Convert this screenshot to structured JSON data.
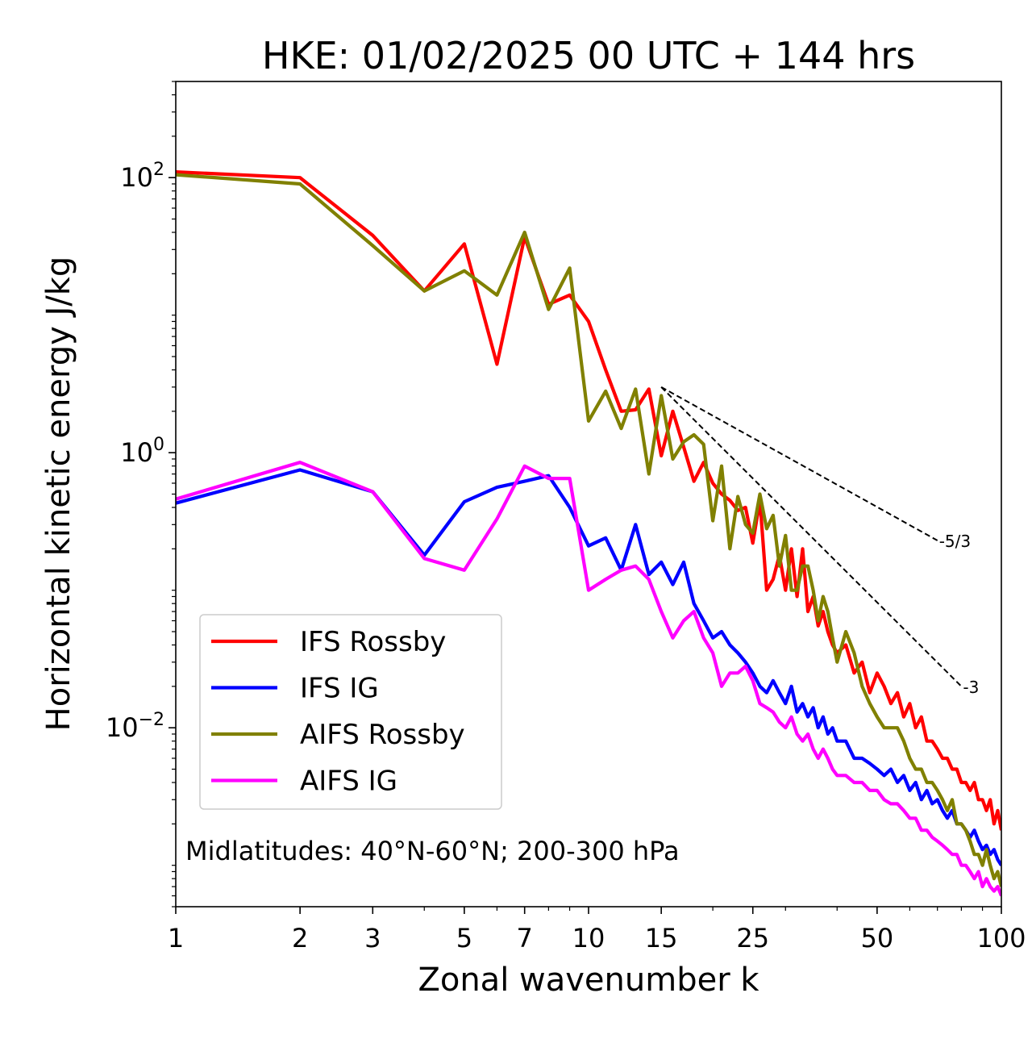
{
  "chart_data": {
    "type": "line",
    "title": "HKE: 01/02/2025 00 UTC + 144 hrs",
    "xlabel": "Zonal wavenumber k",
    "ylabel": "Horizontal kinetic energy J/kg",
    "x_scale": "log",
    "y_scale": "log",
    "xlim": [
      1,
      100
    ],
    "ylim": [
      0.0005,
      500
    ],
    "x_ticks": [
      1,
      2,
      3,
      5,
      7,
      10,
      15,
      25,
      50,
      100
    ],
    "x_tick_labels": [
      "1",
      "2",
      "3",
      "5",
      "7",
      "10",
      "15",
      "25",
      "50",
      "100"
    ],
    "y_ticks": [
      100,
      1,
      0.01
    ],
    "y_tick_labels": [
      {
        "base": "10",
        "exp": "2"
      },
      {
        "base": "10",
        "exp": "0"
      },
      {
        "base": "10",
        "exp": "−2"
      }
    ],
    "grid": false,
    "legend_position": "lower-left",
    "annotation": "Midlatitudes: 40°N-60°N; 200-300 hPa",
    "reference_slopes": [
      {
        "label": "-5/3",
        "slope": -1.6667,
        "x": [
          15,
          70
        ],
        "y": [
          3.0,
          0.23
        ]
      },
      {
        "label": "-3",
        "slope": -3,
        "x": [
          15,
          80
        ],
        "y": [
          3.0,
          0.02
        ]
      }
    ],
    "series": [
      {
        "name": "IFS Rossby",
        "color": "#ff0000",
        "x": [
          1,
          2,
          3,
          4,
          5,
          6,
          7,
          8,
          9,
          10,
          11,
          12,
          13,
          14,
          15,
          16,
          17,
          18,
          19,
          20,
          21,
          22,
          23,
          24,
          25,
          26,
          27,
          28,
          29,
          30,
          31,
          32,
          33,
          34,
          35,
          36,
          37,
          38,
          39,
          40,
          42,
          44,
          46,
          48,
          50,
          52,
          54,
          56,
          58,
          60,
          62,
          64,
          66,
          68,
          70,
          72,
          74,
          76,
          78,
          80,
          82,
          84,
          86,
          88,
          90,
          92,
          94,
          96,
          98,
          100
        ],
        "y": [
          110,
          100,
          38,
          15,
          33,
          4.4,
          37,
          12,
          14,
          9,
          4.0,
          2.0,
          2.05,
          2.9,
          0.95,
          2.0,
          1.1,
          0.62,
          0.85,
          0.6,
          0.5,
          0.45,
          0.38,
          0.4,
          0.22,
          0.45,
          0.1,
          0.12,
          0.18,
          0.1,
          0.2,
          0.09,
          0.2,
          0.07,
          0.09,
          0.055,
          0.07,
          0.05,
          0.04,
          0.035,
          0.04,
          0.025,
          0.03,
          0.018,
          0.025,
          0.02,
          0.015,
          0.018,
          0.012,
          0.015,
          0.01,
          0.012,
          0.008,
          0.008,
          0.007,
          0.006,
          0.006,
          0.005,
          0.005,
          0.004,
          0.004,
          0.0035,
          0.004,
          0.003,
          0.003,
          0.0025,
          0.003,
          0.002,
          0.0025,
          0.0018
        ]
      },
      {
        "name": "IFS IG",
        "color": "#0000ff",
        "x": [
          1,
          2,
          3,
          4,
          5,
          6,
          7,
          8,
          9,
          10,
          11,
          12,
          13,
          14,
          15,
          16,
          17,
          18,
          19,
          20,
          21,
          22,
          23,
          24,
          25,
          26,
          27,
          28,
          29,
          30,
          31,
          32,
          33,
          34,
          35,
          36,
          37,
          38,
          39,
          40,
          42,
          44,
          46,
          48,
          50,
          52,
          54,
          56,
          58,
          60,
          62,
          64,
          66,
          68,
          70,
          72,
          74,
          76,
          78,
          80,
          82,
          84,
          86,
          88,
          90,
          92,
          94,
          96,
          98,
          100
        ],
        "y": [
          0.43,
          0.75,
          0.52,
          0.18,
          0.44,
          0.56,
          0.62,
          0.68,
          0.4,
          0.21,
          0.24,
          0.14,
          0.3,
          0.13,
          0.16,
          0.11,
          0.16,
          0.08,
          0.06,
          0.045,
          0.05,
          0.04,
          0.035,
          0.03,
          0.025,
          0.02,
          0.018,
          0.022,
          0.018,
          0.015,
          0.02,
          0.013,
          0.015,
          0.012,
          0.014,
          0.01,
          0.012,
          0.009,
          0.01,
          0.008,
          0.008,
          0.006,
          0.006,
          0.0055,
          0.005,
          0.0045,
          0.005,
          0.004,
          0.0045,
          0.0035,
          0.004,
          0.003,
          0.0035,
          0.0028,
          0.003,
          0.0025,
          0.0022,
          0.0025,
          0.002,
          0.002,
          0.0018,
          0.0016,
          0.0018,
          0.0015,
          0.0013,
          0.0014,
          0.0012,
          0.0013,
          0.0011,
          0.001
        ]
      },
      {
        "name": "AIFS Rossby",
        "color": "#808000",
        "x": [
          1,
          2,
          3,
          4,
          5,
          6,
          7,
          8,
          9,
          10,
          11,
          12,
          13,
          14,
          15,
          16,
          17,
          18,
          19,
          20,
          21,
          22,
          23,
          24,
          25,
          26,
          27,
          28,
          29,
          30,
          31,
          32,
          33,
          34,
          35,
          36,
          37,
          38,
          39,
          40,
          42,
          44,
          46,
          48,
          50,
          52,
          54,
          56,
          58,
          60,
          62,
          64,
          66,
          68,
          70,
          72,
          74,
          76,
          78,
          80,
          82,
          84,
          86,
          88,
          90,
          92,
          94,
          96,
          98,
          100
        ],
        "y": [
          105,
          90,
          32,
          15,
          21,
          14,
          40,
          11,
          22,
          1.7,
          2.8,
          1.5,
          2.9,
          0.7,
          2.6,
          0.9,
          1.2,
          1.35,
          1.15,
          0.32,
          0.8,
          0.2,
          0.48,
          0.3,
          0.26,
          0.5,
          0.28,
          0.35,
          0.15,
          0.25,
          0.1,
          0.1,
          0.15,
          0.15,
          0.1,
          0.06,
          0.09,
          0.07,
          0.045,
          0.03,
          0.05,
          0.035,
          0.02,
          0.015,
          0.012,
          0.01,
          0.01,
          0.01,
          0.008,
          0.006,
          0.005,
          0.005,
          0.004,
          0.004,
          0.0035,
          0.003,
          0.0025,
          0.003,
          0.002,
          0.002,
          0.0018,
          0.0015,
          0.0012,
          0.0012,
          0.001,
          0.0013,
          0.001,
          0.0008,
          0.0009,
          0.0007
        ]
      },
      {
        "name": "AIFS IG",
        "color": "#ff00ff",
        "x": [
          1,
          2,
          3,
          4,
          5,
          6,
          7,
          8,
          9,
          10,
          11,
          12,
          13,
          14,
          15,
          16,
          17,
          18,
          19,
          20,
          21,
          22,
          23,
          24,
          25,
          26,
          27,
          28,
          29,
          30,
          31,
          32,
          33,
          34,
          35,
          36,
          37,
          38,
          39,
          40,
          42,
          44,
          46,
          48,
          50,
          52,
          54,
          56,
          58,
          60,
          62,
          64,
          66,
          68,
          70,
          72,
          74,
          76,
          78,
          80,
          82,
          84,
          86,
          88,
          90,
          92,
          94,
          96,
          98,
          100
        ],
        "y": [
          0.46,
          0.85,
          0.52,
          0.17,
          0.14,
          0.33,
          0.8,
          0.65,
          0.65,
          0.1,
          0.12,
          0.14,
          0.15,
          0.12,
          0.07,
          0.045,
          0.06,
          0.07,
          0.045,
          0.035,
          0.02,
          0.025,
          0.025,
          0.028,
          0.022,
          0.015,
          0.014,
          0.013,
          0.011,
          0.01,
          0.012,
          0.009,
          0.008,
          0.009,
          0.007,
          0.006,
          0.007,
          0.006,
          0.005,
          0.0045,
          0.0045,
          0.004,
          0.004,
          0.0035,
          0.0035,
          0.003,
          0.0028,
          0.0028,
          0.0025,
          0.0022,
          0.0022,
          0.0018,
          0.0018,
          0.0016,
          0.0015,
          0.0014,
          0.0013,
          0.0012,
          0.0012,
          0.001,
          0.001,
          0.0009,
          0.0008,
          0.0009,
          0.0007,
          0.0008,
          0.0007,
          0.00065,
          0.0007,
          0.0006
        ]
      }
    ]
  }
}
